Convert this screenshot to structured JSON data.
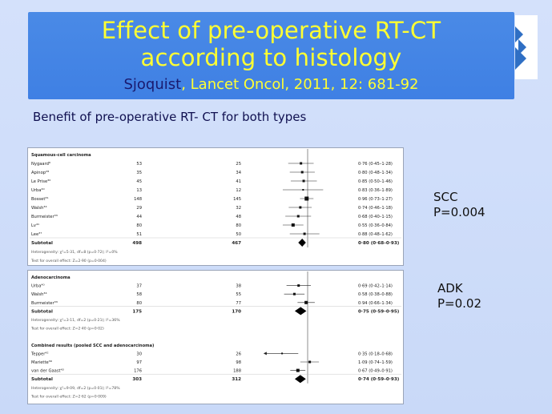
{
  "slide": {
    "title_line1": "Effect of pre-operative  RT-CT",
    "title_line2": "according to histology",
    "citation_author": "Sjoquist",
    "citation_rest": ", Lancet Oncol, 2011, 12: 681-92",
    "subtitle": "Benefit of pre-operative  RT- CT for both types",
    "scc_label": "SCC",
    "scc_p": "P=0.004",
    "adk_label": "ADK",
    "adk_p": "P=0.02",
    "colors": {
      "title_bg": "#4a8ae6",
      "title_text": "#ffff33",
      "author_text": "#1a1a6e",
      "slide_bg": "#d4e1fb"
    }
  },
  "forest_panel_1": {
    "rows": [
      {
        "kind": "section",
        "c0": "Squamous-cell carcinoma",
        "c1": "",
        "c2": "",
        "c3": ""
      },
      {
        "kind": "study",
        "c0": "Nygaard⁹",
        "c1": "53",
        "c2": "25",
        "c3": "0·76 (0·45–1·28)",
        "est": 0.76,
        "lo": 0.45,
        "hi": 1.28,
        "w": 3
      },
      {
        "kind": "study",
        "c0": "Apinop²⁸",
        "c1": "35",
        "c2": "34",
        "c3": "0·80 (0·48–1·34)",
        "est": 0.8,
        "lo": 0.48,
        "hi": 1.34,
        "w": 3
      },
      {
        "kind": "study",
        "c0": "Le Prise³⁰",
        "c1": "45",
        "c2": "41",
        "c3": "0·85 (0·50–1·46)",
        "est": 0.85,
        "lo": 0.5,
        "hi": 1.46,
        "w": 3
      },
      {
        "kind": "study",
        "c0": "Urba⁴⁰",
        "c1": "13",
        "c2": "12",
        "c3": "0·83 (0·36–1·89)",
        "est": 0.83,
        "lo": 0.36,
        "hi": 1.89,
        "w": 2
      },
      {
        "kind": "study",
        "c0": "Bosset³¹",
        "c1": "148",
        "c2": "145",
        "c3": "0·96 (0·73–1·27)",
        "est": 0.96,
        "lo": 0.73,
        "hi": 1.27,
        "w": 5
      },
      {
        "kind": "study",
        "c0": "Walsh³⁴",
        "c1": "29",
        "c2": "32",
        "c3": "0·74 (0·46–1·18)",
        "est": 0.74,
        "lo": 0.46,
        "hi": 1.18,
        "w": 3
      },
      {
        "kind": "study",
        "c0": "Burmeister³³",
        "c1": "44",
        "c2": "48",
        "c3": "0·68 (0·40–1·15)",
        "est": 0.68,
        "lo": 0.4,
        "hi": 1.15,
        "w": 3
      },
      {
        "kind": "study",
        "c0": "Lv⁴¹",
        "c1": "80",
        "c2": "80",
        "c3": "0·55 (0·36–0·84)",
        "est": 0.55,
        "lo": 0.36,
        "hi": 0.84,
        "w": 4
      },
      {
        "kind": "study",
        "c0": "Lee³⁷",
        "c1": "51",
        "c2": "50",
        "c3": "0·88 (0·48–1·62)",
        "est": 0.88,
        "lo": 0.48,
        "hi": 1.62,
        "w": 3
      },
      {
        "kind": "subtotal",
        "c0": "Subtotal",
        "c1": "498",
        "c2": "467",
        "c3": "0·80 (0·68–0·93)",
        "est": 0.8,
        "lo": 0.68,
        "hi": 0.93
      },
      {
        "kind": "note",
        "c0": "Heterogeneity: χ²=5·31, df=8 (p=0·72); I²=0%",
        "c1": "",
        "c2": "",
        "c3": ""
      },
      {
        "kind": "note",
        "c0": "Test for overall effect: Z=2·90 (p=0·004)",
        "c1": "",
        "c2": "",
        "c3": ""
      }
    ]
  },
  "forest_panel_2": {
    "rows": [
      {
        "kind": "section",
        "c0": "Adenocarcinoma",
        "c1": "",
        "c2": "",
        "c3": ""
      },
      {
        "kind": "study",
        "c0": "Urba⁴⁰",
        "c1": "37",
        "c2": "38",
        "c3": "0·69 (0·42–1·14)",
        "est": 0.69,
        "lo": 0.42,
        "hi": 1.14,
        "w": 3
      },
      {
        "kind": "study",
        "c0": "Walsh³⁴",
        "c1": "58",
        "c2": "55",
        "c3": "0·58 (0·38–0·88)",
        "est": 0.58,
        "lo": 0.38,
        "hi": 0.88,
        "w": 3
      },
      {
        "kind": "study",
        "c0": "Burmeister³³",
        "c1": "80",
        "c2": "77",
        "c3": "0·94 (0·66–1·34)",
        "est": 0.94,
        "lo": 0.66,
        "hi": 1.34,
        "w": 4
      },
      {
        "kind": "subtotal",
        "c0": "Subtotal",
        "c1": "175",
        "c2": "170",
        "c3": "0·75 (0·59–0·95)",
        "est": 0.75,
        "lo": 0.59,
        "hi": 0.95
      },
      {
        "kind": "note",
        "c0": "Heterogeneity: χ²=3·11, df=2 (p=0·21); I²=36%",
        "c1": "",
        "c2": "",
        "c3": ""
      },
      {
        "kind": "note",
        "c0": "Test for overall effect: Z=2·40 (p=0·02)",
        "c1": "",
        "c2": "",
        "c3": ""
      },
      {
        "kind": "blank",
        "c0": "",
        "c1": "",
        "c2": "",
        "c3": ""
      },
      {
        "kind": "section",
        "c0": "Combined results (pooled SCC and adenocarcinoma)",
        "c1": "",
        "c2": "",
        "c3": ""
      },
      {
        "kind": "study",
        "c0": "Tepper⁴²",
        "c1": "30",
        "c2": "26",
        "c3": "0·35 (0·18–0·68)",
        "est": 0.35,
        "lo": 0.18,
        "hi": 0.68,
        "w": 2
      },
      {
        "kind": "study",
        "c0": "Mariette³⁹",
        "c1": "97",
        "c2": "98",
        "c3": "1·09 (0·74–1·59)",
        "est": 1.09,
        "lo": 0.74,
        "hi": 1.59,
        "w": 3
      },
      {
        "kind": "study",
        "c0": "van der Gaast⁴³",
        "c1": "176",
        "c2": "188",
        "c3": "0·67 (0·49–0·91)",
        "est": 0.67,
        "lo": 0.49,
        "hi": 0.91,
        "w": 4
      },
      {
        "kind": "subtotal",
        "c0": "Subtotal",
        "c1": "303",
        "c2": "312",
        "c3": "0·74 (0·59–0·93)",
        "est": 0.74,
        "lo": 0.59,
        "hi": 0.93
      },
      {
        "kind": "note",
        "c0": "Heterogeneity: χ²=9·09, df=2 (p=0·01); I²=78%",
        "c1": "",
        "c2": "",
        "c3": ""
      },
      {
        "kind": "note",
        "c0": "Test for overall effect: Z=2·62 (p=0·009)",
        "c1": "",
        "c2": "",
        "c3": ""
      }
    ]
  }
}
